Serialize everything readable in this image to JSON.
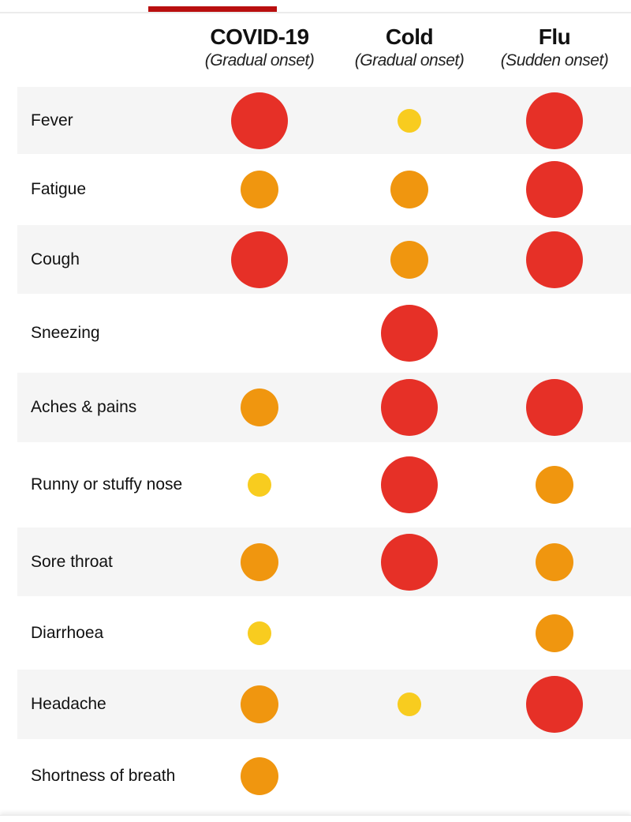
{
  "chart_data": {
    "type": "table",
    "columns": [
      {
        "name": "COVID-19",
        "subtitle": "(Gradual onset)"
      },
      {
        "name": "Cold",
        "subtitle": "(Gradual onset)"
      },
      {
        "name": "Flu",
        "subtitle": "(Sudden onset)"
      }
    ],
    "levels": {
      "0": {
        "meaning": "none"
      },
      "1": {
        "color": "#f8cc1f"
      },
      "2": {
        "color": "#f0960f"
      },
      "3": {
        "color": "#e63027"
      }
    },
    "rows": [
      {
        "symptom": "Fever",
        "values": [
          3,
          1,
          3
        ]
      },
      {
        "symptom": "Fatigue",
        "values": [
          2,
          2,
          3
        ]
      },
      {
        "symptom": "Cough",
        "values": [
          3,
          2,
          3
        ]
      },
      {
        "symptom": "Sneezing",
        "values": [
          0,
          3,
          0
        ]
      },
      {
        "symptom": "Aches & pains",
        "values": [
          2,
          3,
          3
        ]
      },
      {
        "symptom": "Runny or stuffy nose",
        "values": [
          1,
          3,
          2
        ]
      },
      {
        "symptom": "Sore throat",
        "values": [
          2,
          3,
          2
        ]
      },
      {
        "symptom": "Diarrhoea",
        "values": [
          1,
          0,
          2
        ]
      },
      {
        "symptom": "Headache",
        "values": [
          2,
          1,
          3
        ]
      },
      {
        "symptom": "Shortness of breath",
        "values": [
          2,
          0,
          0
        ]
      }
    ]
  },
  "colors": {
    "accent": "#b90f0f",
    "row_shade": "#f5f5f5"
  }
}
